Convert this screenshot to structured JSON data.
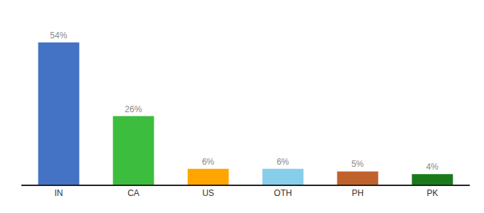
{
  "chart_data": {
    "type": "bar",
    "categories": [
      "IN",
      "CA",
      "US",
      "OTH",
      "PH",
      "PK"
    ],
    "values": [
      54,
      26,
      6,
      6,
      5,
      4
    ],
    "value_labels": [
      "54%",
      "26%",
      "6%",
      "6%",
      "5%",
      "4%"
    ],
    "colors": [
      "#4472C4",
      "#3DBD3D",
      "#FFA500",
      "#87CEEB",
      "#C0622B",
      "#1A7A1A"
    ],
    "ylim": [
      0,
      62
    ],
    "data_labels": true,
    "tick_labels": "x",
    "grid": false
  }
}
